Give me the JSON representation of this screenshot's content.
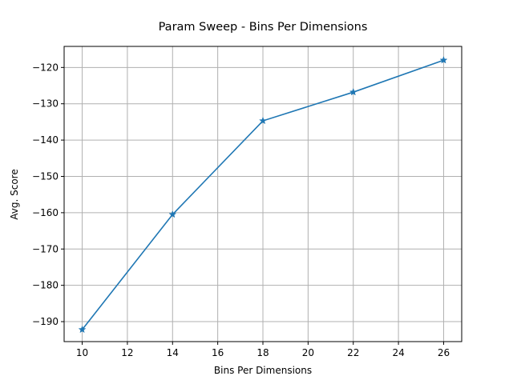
{
  "chart_data": {
    "type": "line",
    "title": "Param Sweep - Bins Per Dimensions",
    "xlabel": "Bins Per Dimensions",
    "ylabel": "Avg. Score",
    "x": [
      10,
      14,
      18,
      22,
      26
    ],
    "series": [
      {
        "values": [
          -192.2,
          -160.5,
          -134.7,
          -126.8,
          -118.0
        ],
        "color": "#1f77b4",
        "marker": "star"
      }
    ],
    "xlim": [
      9.2,
      26.8
    ],
    "ylim": [
      -195.5,
      -114.2
    ],
    "xticks": [
      "10",
      "12",
      "14",
      "16",
      "18",
      "20",
      "22",
      "24",
      "26"
    ],
    "yticks": [
      "−120",
      "−130",
      "−140",
      "−150",
      "−160",
      "−170",
      "−180",
      "−190"
    ],
    "grid": true,
    "legend": "none"
  }
}
